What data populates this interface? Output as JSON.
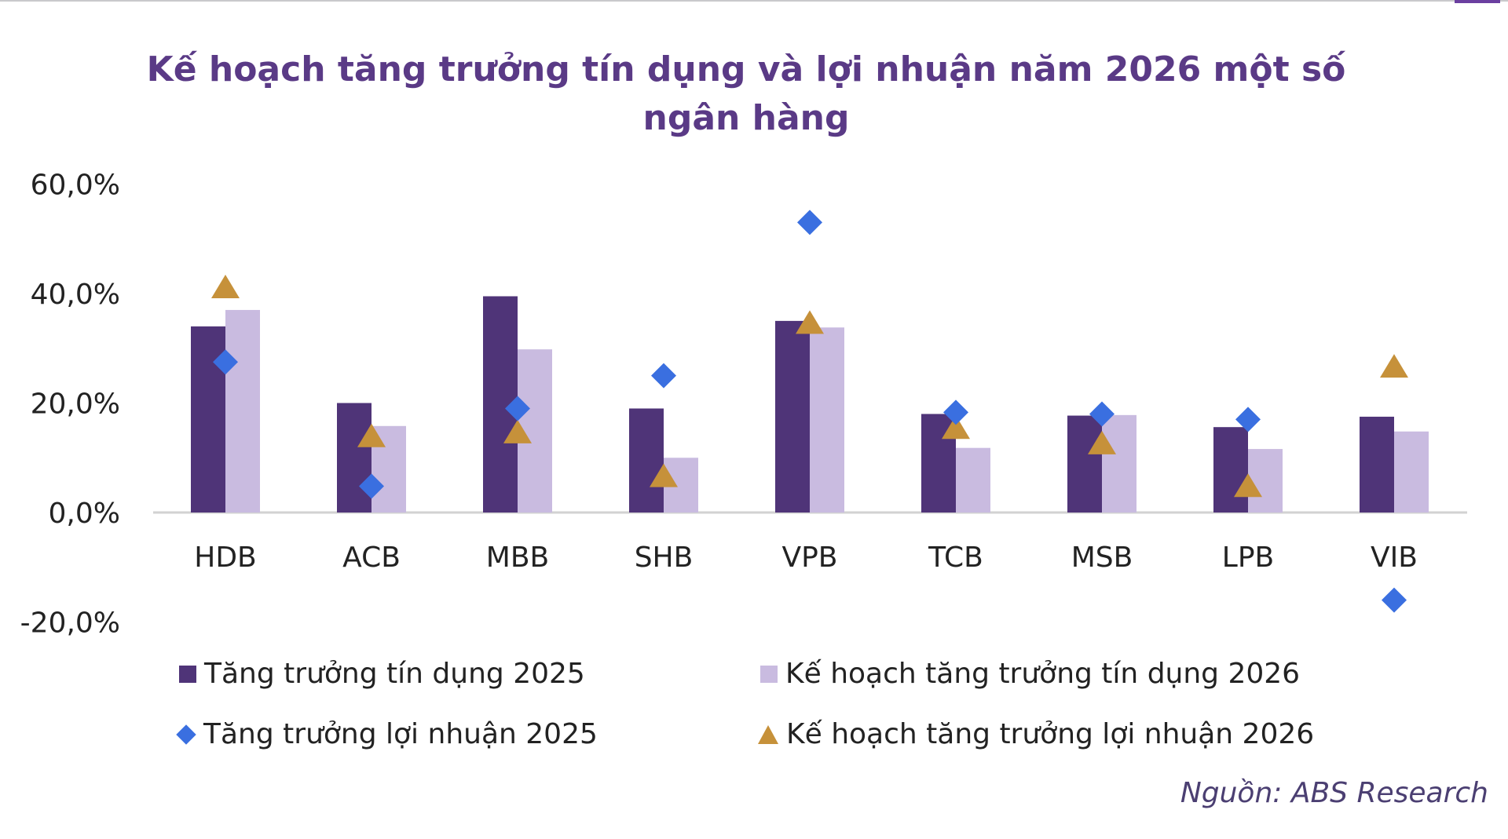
{
  "chart_data": {
    "type": "bar",
    "title": "Kế hoạch tăng trưởng tín dụng và lợi nhuận năm 2026 một số ngân hàng",
    "categories": [
      "HDB",
      "ACB",
      "MBB",
      "SHB",
      "VPB",
      "TCB",
      "MSB",
      "LPB",
      "VIB"
    ],
    "series": [
      {
        "name": "Tăng trưởng tín dụng 2025",
        "kind": "bar",
        "color": "#4f3478",
        "values": [
          34.0,
          20.0,
          39.5,
          19.0,
          35.0,
          18.0,
          17.7,
          15.6,
          17.5
        ]
      },
      {
        "name": "Kế hoạch tăng trưởng tín dụng 2026",
        "kind": "bar",
        "color": "#c9bbe0",
        "values": [
          37.0,
          15.8,
          29.8,
          10.0,
          33.8,
          11.8,
          17.8,
          11.6,
          14.8
        ]
      },
      {
        "name": "Tăng trưởng lợi nhuận 2025",
        "kind": "marker-diamond",
        "color": "#3a6fe0",
        "values": [
          27.5,
          4.8,
          19.0,
          25.0,
          53.0,
          18.3,
          18.0,
          17.0,
          -16.0
        ]
      },
      {
        "name": "Kế hoạch tăng trưởng lợi nhuận 2026",
        "kind": "marker-triangle",
        "color": "#c6913a",
        "values": [
          41.0,
          13.8,
          14.5,
          6.5,
          34.5,
          15.3,
          12.5,
          4.7,
          26.5
        ]
      }
    ],
    "y_ticks": [
      "60,0%",
      "40,0%",
      "20,0%",
      "0,0%",
      "-20,0%"
    ],
    "ylim": [
      -20,
      60
    ],
    "grid": false,
    "legend_position": "bottom"
  },
  "source": "Nguồn: ABS Research"
}
